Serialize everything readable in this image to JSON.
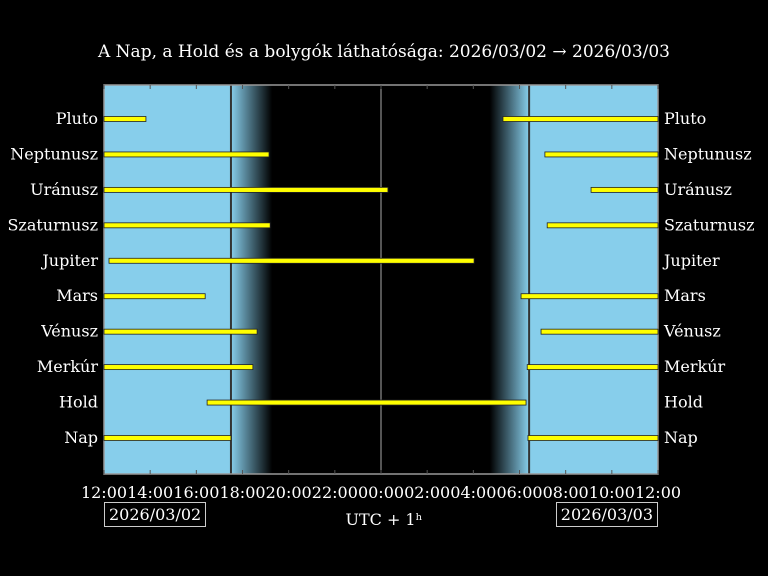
{
  "chart_data": {
    "type": "gantt",
    "title": "A Nap, a Hold és a bolygók láthatósága: 2026/03/02 → 2026/03/03",
    "xlabel": "UTC + 1ʰ",
    "x_range": [
      "2026/03/02 12:00",
      "2026/03/03 12:00"
    ],
    "x_ticks": [
      "12:00",
      "14:00",
      "16:00",
      "18:00",
      "20:00",
      "22:00",
      "00:00",
      "02:00",
      "04:00",
      "06:00",
      "08:00",
      "10:00",
      "12:00"
    ],
    "start_date": "2026/03/02",
    "end_date": "2026/03/03",
    "sunset": "17:30",
    "dusk_end": "19:17",
    "dawn_start": "04:43",
    "sunrise": "06:25",
    "colors": {
      "day": "#87ceeb",
      "night": "#000000",
      "bar": "#ffff00"
    },
    "series": [
      {
        "name": "Pluto",
        "intervals": [
          [
            "12:00",
            "13:49"
          ],
          [
            "05:17",
            "12:00"
          ]
        ]
      },
      {
        "name": "Neptunusz",
        "intervals": [
          [
            "12:00",
            "19:09"
          ],
          [
            "07:06",
            "12:00"
          ]
        ]
      },
      {
        "name": "Uránusz",
        "intervals": [
          [
            "12:00",
            "00:18"
          ],
          [
            "09:06",
            "12:00"
          ]
        ]
      },
      {
        "name": "Szaturnusz",
        "intervals": [
          [
            "12:00",
            "19:12"
          ],
          [
            "07:12",
            "12:00"
          ]
        ]
      },
      {
        "name": "Jupiter",
        "intervals": [
          [
            "12:13",
            "04:02"
          ]
        ]
      },
      {
        "name": "Mars",
        "intervals": [
          [
            "12:00",
            "16:23"
          ],
          [
            "06:04",
            "12:00"
          ]
        ]
      },
      {
        "name": "Vénusz",
        "intervals": [
          [
            "12:00",
            "18:38"
          ],
          [
            "06:56",
            "12:00"
          ]
        ]
      },
      {
        "name": "Merkúr",
        "intervals": [
          [
            "12:00",
            "18:27"
          ],
          [
            "06:20",
            "12:00"
          ]
        ]
      },
      {
        "name": "Hold",
        "intervals": [
          [
            "16:28",
            "06:17"
          ]
        ]
      },
      {
        "name": "Nap",
        "intervals": [
          [
            "12:00",
            "17:30"
          ],
          [
            "06:22",
            "12:00"
          ]
        ]
      }
    ]
  }
}
